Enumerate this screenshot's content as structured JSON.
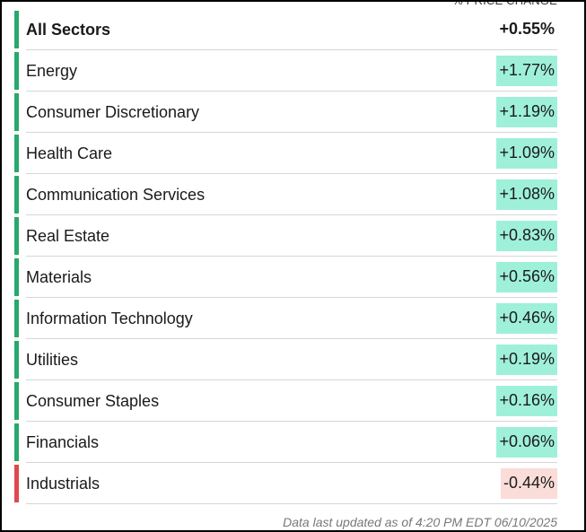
{
  "header": {
    "column_label": "% PRICE CHANGE"
  },
  "summary": {
    "label": "All Sectors",
    "change": "+0.55%"
  },
  "rows": [
    {
      "label": "Energy",
      "change": "+1.77%"
    },
    {
      "label": "Consumer Discretionary",
      "change": "+1.19%"
    },
    {
      "label": "Health Care",
      "change": "+1.09%"
    },
    {
      "label": "Communication Services",
      "change": "+1.08%"
    },
    {
      "label": "Real Estate",
      "change": "+0.83%"
    },
    {
      "label": "Materials",
      "change": "+0.56%"
    },
    {
      "label": "Information Technology",
      "change": "+0.46%"
    },
    {
      "label": "Utilities",
      "change": "+0.19%"
    },
    {
      "label": "Consumer Staples",
      "change": "+0.16%"
    },
    {
      "label": "Financials",
      "change": "+0.06%"
    },
    {
      "label": "Industrials",
      "change": "-0.44%"
    }
  ],
  "footer": "Data last updated as of 4:20 PM EDT 06/10/2025"
}
